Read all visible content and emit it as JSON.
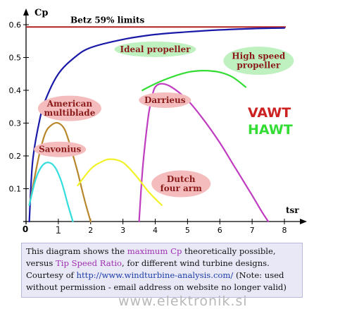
{
  "chart_data": {
    "type": "line",
    "title": "",
    "xlabel": "tsr",
    "ylabel": "Cp",
    "xlim": [
      0,
      8
    ],
    "ylim": [
      0,
      0.6
    ],
    "x_ticks": [
      "1",
      "2",
      "3",
      "4",
      "5",
      "6",
      "7",
      "8"
    ],
    "y_ticks": [
      "0.1",
      "0.2",
      "0.3",
      "0.4",
      "0.5",
      "0.6"
    ],
    "origin_label": "0",
    "grid": false,
    "betz": {
      "label": "Betz 59% limits",
      "y": 0.593,
      "color": "#b22222"
    },
    "series": [
      {
        "name": "Ideal propeller",
        "color": "#1a1aa8",
        "points": [
          [
            0.1,
            0.0
          ],
          [
            0.2,
            0.18
          ],
          [
            0.4,
            0.3
          ],
          [
            0.6,
            0.37
          ],
          [
            1.0,
            0.45
          ],
          [
            1.5,
            0.5
          ],
          [
            2.0,
            0.53
          ],
          [
            3.0,
            0.555
          ],
          [
            4.0,
            0.57
          ],
          [
            5.0,
            0.578
          ],
          [
            6.0,
            0.584
          ],
          [
            7.0,
            0.588
          ],
          [
            8.0,
            0.59
          ]
        ]
      },
      {
        "name": "High speed propeller",
        "color": "#33dd33",
        "points": [
          [
            3.6,
            0.4
          ],
          [
            4.0,
            0.42
          ],
          [
            4.5,
            0.44
          ],
          [
            5.0,
            0.455
          ],
          [
            5.5,
            0.46
          ],
          [
            6.0,
            0.455
          ],
          [
            6.4,
            0.44
          ],
          [
            6.8,
            0.41
          ]
        ]
      },
      {
        "name": "Darrieus",
        "color": "#c03cc0",
        "points": [
          [
            3.5,
            0.0
          ],
          [
            3.6,
            0.15
          ],
          [
            3.7,
            0.25
          ],
          [
            3.8,
            0.33
          ],
          [
            3.9,
            0.38
          ],
          [
            4.0,
            0.41
          ],
          [
            4.2,
            0.42
          ],
          [
            4.5,
            0.41
          ],
          [
            5.0,
            0.37
          ],
          [
            5.5,
            0.31
          ],
          [
            6.0,
            0.24
          ],
          [
            6.5,
            0.16
          ],
          [
            7.0,
            0.08
          ],
          [
            7.3,
            0.03
          ],
          [
            7.5,
            0.0
          ]
        ]
      },
      {
        "name": "American multiblade",
        "color": "#b8862b",
        "points": [
          [
            0.1,
            0.05
          ],
          [
            0.4,
            0.2
          ],
          [
            0.6,
            0.27
          ],
          [
            0.8,
            0.295
          ],
          [
            1.0,
            0.3
          ],
          [
            1.2,
            0.28
          ],
          [
            1.4,
            0.22
          ],
          [
            1.6,
            0.15
          ],
          [
            1.8,
            0.07
          ],
          [
            2.0,
            0.0
          ]
        ]
      },
      {
        "name": "Savonius",
        "color": "#33dddd",
        "points": [
          [
            0.1,
            0.05
          ],
          [
            0.3,
            0.13
          ],
          [
            0.5,
            0.17
          ],
          [
            0.7,
            0.18
          ],
          [
            0.9,
            0.165
          ],
          [
            1.1,
            0.12
          ],
          [
            1.3,
            0.05
          ],
          [
            1.45,
            0.0
          ]
        ]
      },
      {
        "name": "Dutch four arm",
        "color": "#f2f22a",
        "points": [
          [
            1.6,
            0.11
          ],
          [
            2.0,
            0.16
          ],
          [
            2.3,
            0.18
          ],
          [
            2.6,
            0.19
          ],
          [
            3.0,
            0.18
          ],
          [
            3.4,
            0.14
          ],
          [
            3.8,
            0.09
          ],
          [
            4.2,
            0.05
          ]
        ]
      }
    ],
    "curve_labels": [
      {
        "text": "Ideal propeller",
        "lines": [
          "Ideal propeller"
        ],
        "fill": "#bff0bf",
        "at": [
          4.0,
          0.525
        ],
        "rx": 58,
        "ry": 11
      },
      {
        "text": "High speed propeller",
        "lines": [
          "High speed",
          "propeller"
        ],
        "fill": "#bff0bf",
        "at": [
          7.2,
          0.49
        ],
        "rx": 50,
        "ry": 20
      },
      {
        "text": "Darrieus",
        "lines": [
          "Darrieus"
        ],
        "fill": "#f4bcbc",
        "at": [
          4.3,
          0.37
        ],
        "rx": 37,
        "ry": 11
      },
      {
        "text": "American multiblade",
        "lines": [
          "American",
          "multiblade"
        ],
        "fill": "#f4bcbc",
        "at": [
          1.35,
          0.345
        ],
        "rx": 45,
        "ry": 18
      },
      {
        "text": "Savonius",
        "lines": [
          "Savonius"
        ],
        "fill": "#f4bcbc",
        "at": [
          1.05,
          0.22
        ],
        "rx": 37,
        "ry": 11
      },
      {
        "text": "Dutch four arm",
        "lines": [
          "Dutch",
          "four arm"
        ],
        "fill": "#f4bcbc",
        "at": [
          4.8,
          0.115
        ],
        "rx": 42,
        "ry": 19
      }
    ],
    "type_legend": [
      {
        "text": "VAWT",
        "color": "#cc2222"
      },
      {
        "text": "HAWT",
        "color": "#33dd33"
      }
    ]
  },
  "caption": {
    "t1": "This diagram shows the ",
    "h1": "maximum Cp",
    "t2": " theoretically possible,",
    "t3": "versus ",
    "h2": "Tip Speed Ratio",
    "t4": ", for different wind turbine designs.",
    "t5": "Courtesy of ",
    "link": "http://www.windturbine-analysis.com/",
    "t6": " (Note: used",
    "t7": "without permission - email address on website no longer valid)"
  },
  "watermark": "www.elektronik.si"
}
